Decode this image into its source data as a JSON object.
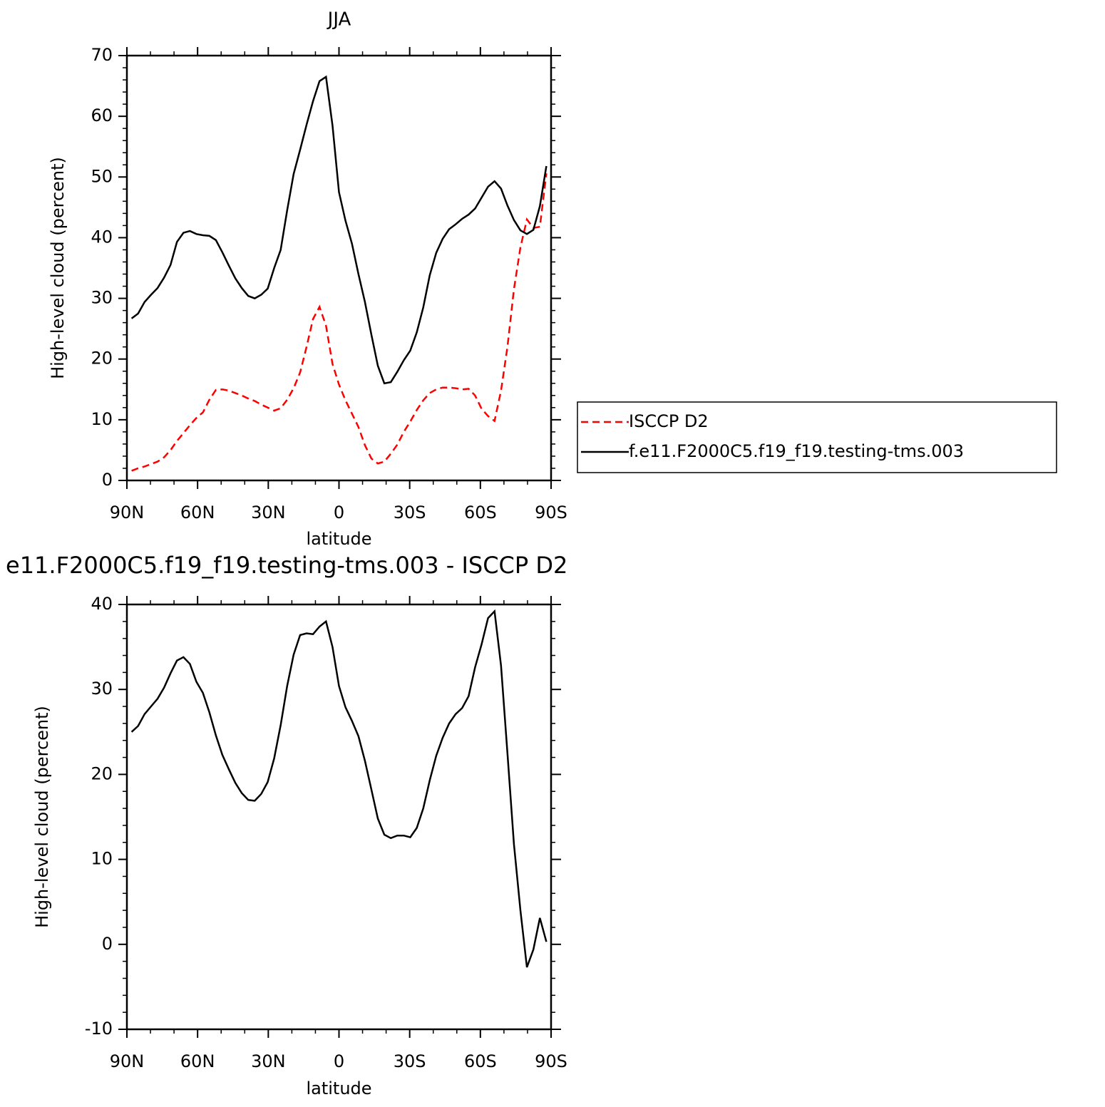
{
  "chart_data": [
    {
      "type": "line",
      "title": "JJA",
      "xlabel": "latitude",
      "ylabel": "High-level cloud (percent)",
      "x": [
        88,
        85.25,
        82.5,
        79.75,
        77,
        74.25,
        71.5,
        68.75,
        66,
        63.25,
        60.5,
        57.75,
        55,
        52.25,
        49.5,
        46.75,
        44,
        41.25,
        38.5,
        35.75,
        33,
        30.25,
        27.5,
        24.75,
        22,
        19.25,
        16.5,
        13.75,
        11,
        8.25,
        5.5,
        2.75,
        0,
        -2.75,
        -5.5,
        -8.25,
        -11,
        -13.75,
        -16.5,
        -19.25,
        -22,
        -24.75,
        -27.5,
        -30.25,
        -33,
        -35.75,
        -38.5,
        -41.25,
        -44,
        -46.75,
        -49.5,
        -52.25,
        -55,
        -57.75,
        -60.5,
        -63.25,
        -66,
        -68.75,
        -71.5,
        -74.25,
        -77,
        -79.75,
        -82.5,
        -85.25,
        -88
      ],
      "series": [
        {
          "name": "ISCCP D2",
          "color": "#ff0000",
          "style": "dashed",
          "values": [
            1.6,
            2.0,
            2.3,
            2.7,
            3.1,
            3.8,
            5.0,
            6.5,
            7.8,
            9.1,
            10.3,
            11.2,
            13.3,
            14.9,
            15.0,
            14.8,
            14.4,
            14.0,
            13.5,
            13.1,
            12.5,
            12.0,
            11.5,
            11.9,
            13.3,
            15.2,
            17.8,
            22.0,
            26.6,
            28.6,
            25.5,
            19.2,
            15.8,
            13.2,
            11.0,
            8.8,
            5.8,
            3.6,
            2.8,
            3.1,
            4.4,
            5.9,
            8.0,
            9.7,
            11.6,
            13.2,
            14.4,
            15.0,
            15.3,
            15.3,
            15.2,
            15.0,
            15.1,
            14.0,
            11.8,
            10.6,
            9.8,
            14.8,
            22.0,
            31.5,
            38.4,
            43.0,
            41.6,
            41.8,
            50.6
          ]
        },
        {
          "name": "f.e11.F2000C5.f19_f19.testing-tms.003",
          "color": "#000000",
          "style": "solid",
          "values": [
            26.7,
            27.5,
            29.4,
            30.6,
            31.7,
            33.4,
            35.5,
            39.3,
            40.8,
            41.1,
            40.6,
            40.4,
            40.3,
            39.6,
            37.6,
            35.4,
            33.3,
            31.7,
            30.4,
            30.0,
            30.6,
            31.6,
            35.0,
            38.0,
            44.5,
            50.5,
            54.5,
            58.6,
            62.5,
            65.8,
            66.5,
            58.5,
            47.5,
            42.8,
            39.0,
            34.0,
            29.4,
            24.0,
            18.9,
            16.0,
            16.2,
            17.9,
            19.8,
            21.4,
            24.4,
            28.5,
            33.8,
            37.5,
            39.8,
            41.4,
            42.2,
            43.1,
            43.8,
            44.8,
            46.6,
            48.4,
            49.3,
            48.1,
            45.3,
            42.9,
            41.2,
            40.6,
            41.3,
            45.2,
            51.8
          ]
        }
      ],
      "xlim": [
        90,
        -90
      ],
      "xticks": [
        {
          "value": 90,
          "label": "90N"
        },
        {
          "value": 60,
          "label": "60N"
        },
        {
          "value": 30,
          "label": "30N"
        },
        0,
        {
          "value": -30,
          "label": "30S"
        },
        {
          "value": -60,
          "label": "60S"
        },
        {
          "value": -90,
          "label": "90S"
        }
      ],
      "ylim": [
        0,
        70
      ],
      "yticks": [
        0,
        10,
        20,
        30,
        40,
        50,
        60,
        70
      ],
      "legend": "right"
    },
    {
      "type": "line",
      "title": "e11.F2000C5.f19_f19.testing-tms.003 - ISCCP D2",
      "xlabel": "latitude",
      "ylabel": "High-level cloud (percent)",
      "x": [
        88,
        85.25,
        82.5,
        79.75,
        77,
        74.25,
        71.5,
        68.75,
        66,
        63.25,
        60.5,
        57.75,
        55,
        52.25,
        49.5,
        46.75,
        44,
        41.25,
        38.5,
        35.75,
        33,
        30.25,
        27.5,
        24.75,
        22,
        19.25,
        16.5,
        13.75,
        11,
        8.25,
        5.5,
        2.75,
        0,
        -2.75,
        -5.5,
        -8.25,
        -11,
        -13.75,
        -16.5,
        -19.25,
        -22,
        -24.75,
        -27.5,
        -30.25,
        -33,
        -35.75,
        -38.5,
        -41.25,
        -44,
        -46.75,
        -49.5,
        -52.25,
        -55,
        -57.75,
        -60.5,
        -63.25,
        -66,
        -68.75,
        -71.5,
        -74.25,
        -77,
        -79.75,
        -82.5,
        -85.25,
        -88
      ],
      "series": [
        {
          "color": "#000000",
          "style": "solid",
          "values": [
            25.0,
            25.7,
            27.1,
            28.0,
            28.9,
            30.2,
            31.9,
            33.4,
            33.8,
            33.0,
            30.9,
            29.6,
            27.3,
            24.6,
            22.3,
            20.6,
            19.0,
            17.8,
            17.0,
            16.9,
            17.7,
            19.1,
            21.9,
            25.8,
            30.4,
            34.1,
            36.4,
            36.6,
            36.5,
            37.4,
            38.0,
            35.0,
            30.4,
            27.9,
            26.3,
            24.5,
            21.6,
            18.2,
            14.8,
            12.9,
            12.5,
            12.8,
            12.8,
            12.6,
            13.7,
            16.0,
            19.3,
            22.2,
            24.3,
            26.0,
            27.1,
            27.8,
            29.2,
            32.6,
            35.3,
            38.4,
            39.2,
            32.8,
            22.5,
            11.8,
            4.0,
            -2.7,
            -0.6,
            3.1,
            0.3
          ]
        }
      ],
      "xlim": [
        90,
        -90
      ],
      "xticks": [
        {
          "value": 90,
          "label": "90N"
        },
        {
          "value": 60,
          "label": "60N"
        },
        {
          "value": 30,
          "label": "30N"
        },
        0,
        {
          "value": -30,
          "label": "30S"
        },
        {
          "value": -60,
          "label": "60S"
        },
        {
          "value": -90,
          "label": "90S"
        }
      ],
      "ylim": [
        -10,
        40
      ],
      "yticks": [
        -10,
        0,
        10,
        20,
        30,
        40
      ]
    }
  ]
}
